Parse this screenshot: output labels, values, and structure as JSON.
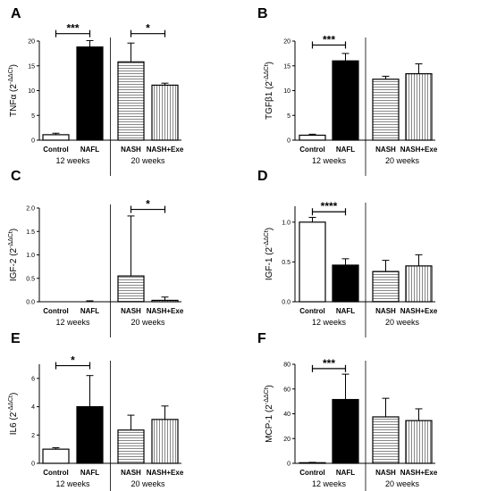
{
  "chart_data": [
    {
      "type": "bar",
      "panel": "A",
      "ylabel": "TNFα (2^-ΔΔCt)",
      "ylim": [
        0,
        20
      ],
      "yticks": [
        0,
        5,
        10,
        15,
        20
      ],
      "categories": [
        "Control",
        "NAFL",
        "NASH",
        "NASH+Exe"
      ],
      "values": [
        1.1,
        18.8,
        15.8,
        11.1
      ],
      "errors": [
        0.3,
        1.3,
        3.8,
        0.4
      ],
      "groups": [
        {
          "label": "12 weeks",
          "from": 0,
          "to": 1
        },
        {
          "label": "20 weeks",
          "from": 2,
          "to": 3
        }
      ],
      "significance": [
        {
          "from": 0,
          "to": 1,
          "label": "***",
          "y": 21.5
        },
        {
          "from": 2,
          "to": 3,
          "label": "*",
          "y": 21.5
        }
      ]
    },
    {
      "type": "bar",
      "panel": "B",
      "ylabel": "TGFβ1 (2^-ΔΔCt)",
      "ylim": [
        0,
        20
      ],
      "yticks": [
        0,
        5,
        10,
        15,
        20
      ],
      "categories": [
        "Control",
        "NAFL",
        "NASH",
        "NASH+Exe"
      ],
      "values": [
        1.0,
        16.0,
        12.3,
        13.4
      ],
      "errors": [
        0.2,
        1.5,
        0.6,
        2.0
      ],
      "groups": [
        {
          "label": "12 weeks",
          "from": 0,
          "to": 1
        },
        {
          "label": "20 weeks",
          "from": 2,
          "to": 3
        }
      ],
      "significance": [
        {
          "from": 0,
          "to": 1,
          "label": "***",
          "y": 19.2
        }
      ]
    },
    {
      "type": "bar",
      "panel": "C",
      "ylabel": "IGF-2 (2^-ΔΔCt)",
      "ylim": [
        0,
        2.0
      ],
      "yticks": [
        "0.0",
        "0.5",
        "1.0",
        "1.5",
        "2.0"
      ],
      "categories": [
        "Control",
        "NAFL",
        "NASH",
        "NASH+Exe"
      ],
      "values": [
        0.0,
        0.0,
        0.55,
        0.03
      ],
      "errors": [
        0.0,
        0.02,
        1.28,
        0.07
      ],
      "groups": [
        {
          "label": "12 weeks",
          "from": 0,
          "to": 1
        },
        {
          "label": "20 weeks",
          "from": 2,
          "to": 3
        }
      ],
      "significance": [
        {
          "from": 2,
          "to": 3,
          "label": "*",
          "y": 1.97
        }
      ]
    },
    {
      "type": "bar",
      "panel": "D",
      "ylabel": "IGF-1 (2^-ΔΔCt)",
      "ylim": [
        0,
        1.2
      ],
      "yticks": [
        "0.0",
        "0.5",
        "1.0"
      ],
      "categories": [
        "Control",
        "NAFL",
        "NASH",
        "NASH+Exe"
      ],
      "values": [
        1.0,
        0.46,
        0.38,
        0.45
      ],
      "errors": [
        0.06,
        0.08,
        0.14,
        0.14
      ],
      "groups": [
        {
          "label": "12 weeks",
          "from": 0,
          "to": 1
        },
        {
          "label": "20 weeks",
          "from": 2,
          "to": 3
        }
      ],
      "significance": [
        {
          "from": 0,
          "to": 1,
          "label": "****",
          "y": 1.13
        }
      ]
    },
    {
      "type": "bar",
      "panel": "E",
      "ylabel": "IL6 (2^-ΔΔCt)",
      "ylim": [
        0,
        7
      ],
      "yticks": [
        0,
        2,
        4,
        6
      ],
      "categories": [
        "Control",
        "NAFL",
        "NASH",
        "NASH+Exe"
      ],
      "values": [
        1.0,
        4.0,
        2.35,
        3.1
      ],
      "errors": [
        0.1,
        2.2,
        1.05,
        0.95
      ],
      "groups": [
        {
          "label": "12 weeks",
          "from": 0,
          "to": 1
        },
        {
          "label": "20 weeks",
          "from": 2,
          "to": 3
        }
      ],
      "significance": [
        {
          "from": 0,
          "to": 1,
          "label": "*",
          "y": 6.9
        }
      ]
    },
    {
      "type": "bar",
      "panel": "F",
      "ylabel": "MCP-1 (2^-ΔΔCt)",
      "ylim": [
        0,
        80
      ],
      "yticks": [
        0,
        20,
        40,
        60,
        80
      ],
      "categories": [
        "Control",
        "NAFL",
        "NASH",
        "NASH+Exe"
      ],
      "values": [
        0.5,
        51.5,
        37.5,
        34.5
      ],
      "errors": [
        0.3,
        20.5,
        15.0,
        9.5
      ],
      "groups": [
        {
          "label": "12 weeks",
          "from": 0,
          "to": 1
        },
        {
          "label": "20 weeks",
          "from": 2,
          "to": 3
        }
      ],
      "significance": [
        {
          "from": 0,
          "to": 1,
          "label": "***",
          "y": 76.5
        }
      ]
    }
  ]
}
